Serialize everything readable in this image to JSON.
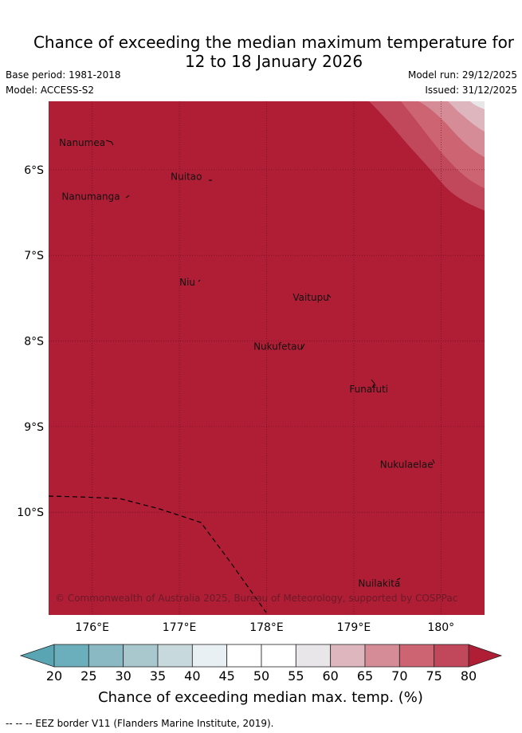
{
  "title": {
    "line1": "Chance of exceeding the median maximum temperature for",
    "line2": "12 to 18 January 2026"
  },
  "meta": {
    "base_period": "Base period: 1981-2018",
    "model": "Model: ACCESS-S2",
    "model_run": "Model run: 29/12/2025",
    "issued": "Issued: 31/12/2025"
  },
  "map": {
    "lon_range": [
      175.5,
      180.5
    ],
    "lat_range": [
      -11.2,
      -5.2
    ],
    "base_color": "#b01e36",
    "places": [
      {
        "name": "Nanumea",
        "lon": 175.62,
        "lat": -5.72
      },
      {
        "name": "Nuitao",
        "lon": 176.9,
        "lat": -6.12
      },
      {
        "name": "Nanumanga",
        "lon": 175.65,
        "lat": -6.35
      },
      {
        "name": "Niu",
        "lon": 177.0,
        "lat": -7.35
      },
      {
        "name": "Vaitupu",
        "lon": 178.3,
        "lat": -7.53
      },
      {
        "name": "Nukufetau",
        "lon": 177.85,
        "lat": -8.1
      },
      {
        "name": "Funafuti",
        "lon": 178.95,
        "lat": -8.6
      },
      {
        "name": "Nukulaelae",
        "lon": 179.3,
        "lat": -9.48
      },
      {
        "name": "Nuilakita",
        "lon": 179.05,
        "lat": -10.87
      }
    ],
    "lon_ticks": [
      {
        "value": 176,
        "label": "176°E"
      },
      {
        "value": 177,
        "label": "177°E"
      },
      {
        "value": 178,
        "label": "178°E"
      },
      {
        "value": 179,
        "label": "179°E"
      },
      {
        "value": 180,
        "label": "180°"
      }
    ],
    "lat_ticks": [
      {
        "value": -6,
        "label": "6°S"
      },
      {
        "value": -7,
        "label": "7°S"
      },
      {
        "value": -8,
        "label": "8°S"
      },
      {
        "value": -9,
        "label": "9°S"
      },
      {
        "value": -10,
        "label": "10°S"
      }
    ],
    "copyright": "© Commonwealth of Australia 2025, Bureau of Meteorology, supported by COSPPac"
  },
  "colorbar": {
    "title": "Chance of exceeding median max. temp. (%)",
    "ticks": [
      "20",
      "25",
      "30",
      "35",
      "40",
      "45",
      "50",
      "55",
      "60",
      "65",
      "70",
      "75",
      "80"
    ],
    "under_color": "#5aa5b4",
    "over_color": "#b01e36",
    "colors": [
      "#6aafbb",
      "#8ab8c3",
      "#a8c8ce",
      "#c8d9de",
      "#e9f0f3",
      "#ffffff",
      "#ffffff",
      "#e9e6e9",
      "#deb7be",
      "#d58c96",
      "#cc6472",
      "#c0485a"
    ]
  },
  "footnote": "--  --  -- EEZ border V11 (Flanders Marine Institute, 2019)."
}
